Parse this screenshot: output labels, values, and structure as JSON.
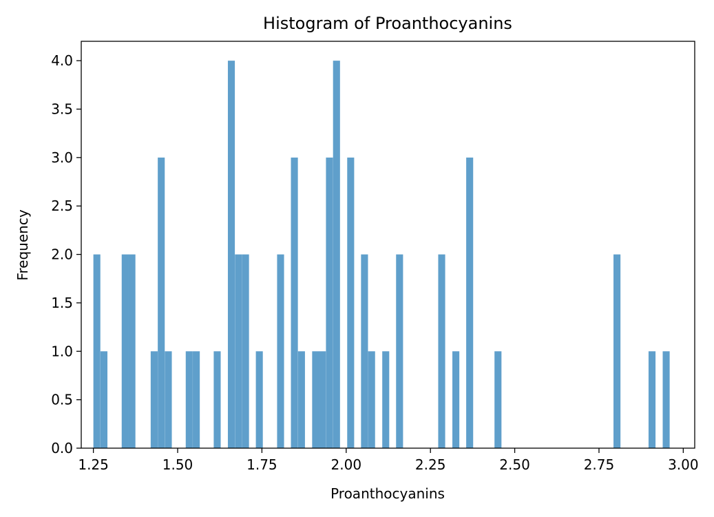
{
  "chart_data": {
    "type": "bar",
    "subtype": "histogram",
    "title": "Histogram of Proanthocyanins",
    "xlabel": "Proanthocyanins",
    "ylabel": "Frequency",
    "xlim": [
      1.214,
      3.034
    ],
    "ylim": [
      0.0,
      4.2
    ],
    "bin_width": 0.0207,
    "x_ticks": [
      "1.25",
      "1.50",
      "1.75",
      "2.00",
      "2.25",
      "2.50",
      "2.75",
      "3.00"
    ],
    "y_ticks": [
      "0.0",
      "0.5",
      "1.0",
      "1.5",
      "2.0",
      "2.5",
      "3.0",
      "3.5",
      "4.0"
    ],
    "bar_color": "#5f9fcb",
    "grid": false,
    "bins": [
      {
        "x": 1.25,
        "count": 2
      },
      {
        "x": 1.271,
        "count": 1
      },
      {
        "x": 1.334,
        "count": 2
      },
      {
        "x": 1.354,
        "count": 2
      },
      {
        "x": 1.42,
        "count": 1
      },
      {
        "x": 1.441,
        "count": 3
      },
      {
        "x": 1.462,
        "count": 1
      },
      {
        "x": 1.524,
        "count": 1
      },
      {
        "x": 1.545,
        "count": 1
      },
      {
        "x": 1.607,
        "count": 1
      },
      {
        "x": 1.649,
        "count": 4
      },
      {
        "x": 1.67,
        "count": 2
      },
      {
        "x": 1.691,
        "count": 2
      },
      {
        "x": 1.732,
        "count": 1
      },
      {
        "x": 1.795,
        "count": 2
      },
      {
        "x": 1.836,
        "count": 3
      },
      {
        "x": 1.857,
        "count": 1
      },
      {
        "x": 1.899,
        "count": 1
      },
      {
        "x": 1.919,
        "count": 1
      },
      {
        "x": 1.94,
        "count": 3
      },
      {
        "x": 1.961,
        "count": 4
      },
      {
        "x": 2.003,
        "count": 3
      },
      {
        "x": 2.044,
        "count": 2
      },
      {
        "x": 2.065,
        "count": 1
      },
      {
        "x": 2.107,
        "count": 1
      },
      {
        "x": 2.148,
        "count": 2
      },
      {
        "x": 2.273,
        "count": 2
      },
      {
        "x": 2.315,
        "count": 1
      },
      {
        "x": 2.356,
        "count": 3
      },
      {
        "x": 2.44,
        "count": 1
      },
      {
        "x": 2.793,
        "count": 2
      },
      {
        "x": 2.897,
        "count": 1
      },
      {
        "x": 2.939,
        "count": 1
      }
    ]
  }
}
